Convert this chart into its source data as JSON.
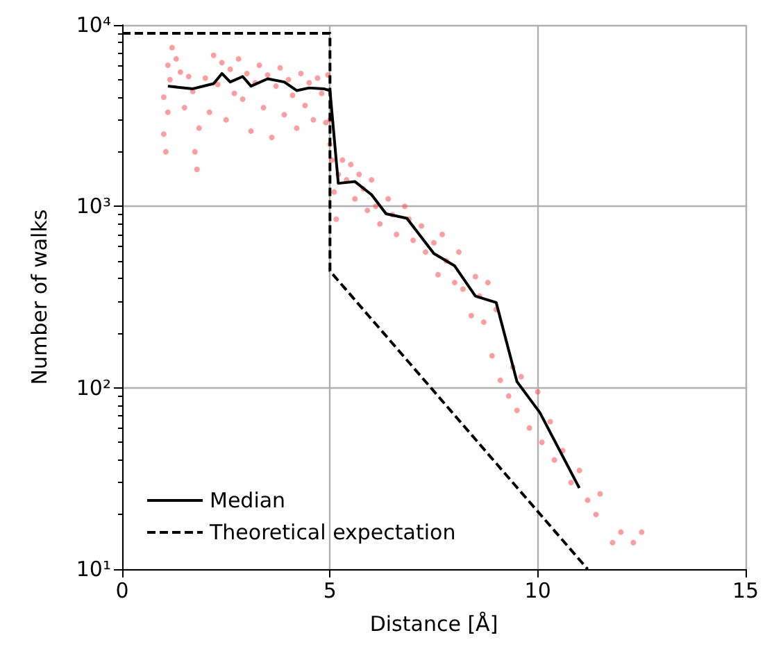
{
  "chart_data": {
    "type": "line",
    "xlabel": "Distance [Å]",
    "ylabel": "Number of walks",
    "xlim": [
      0,
      15
    ],
    "xticks": [
      0,
      5,
      10,
      15
    ],
    "ylim": [
      10,
      10000
    ],
    "yticks": [
      {
        "value": 10,
        "label": "10¹"
      },
      {
        "value": 100,
        "label": "10²"
      },
      {
        "value": 1000,
        "label": "10³"
      },
      {
        "value": 10000,
        "label": "10⁴"
      }
    ],
    "log": "y",
    "grid": true,
    "legend": "bottom left",
    "series": [
      {
        "type": "scatter",
        "color": "#ff4d4d",
        "marker": "circle",
        "x": [
          1.0,
          1.0,
          1.05,
          1.1,
          1.1,
          1.15,
          1.2,
          1.3,
          1.4,
          1.5,
          1.6,
          1.7,
          1.75,
          1.8,
          1.85,
          2.0,
          2.1,
          2.2,
          2.3,
          2.4,
          2.5,
          2.6,
          2.7,
          2.8,
          2.9,
          3.0,
          3.1,
          3.2,
          3.3,
          3.4,
          3.5,
          3.6,
          3.7,
          3.8,
          3.9,
          4.0,
          4.1,
          4.2,
          4.3,
          4.4,
          4.5,
          4.6,
          4.7,
          4.8,
          4.9,
          4.95,
          5.0,
          5.0,
          5.05,
          5.1,
          5.15,
          5.2,
          5.3,
          5.4,
          5.5,
          5.6,
          5.7,
          5.8,
          5.9,
          6.0,
          6.1,
          6.2,
          6.4,
          6.5,
          6.6,
          6.8,
          6.9,
          7.0,
          7.2,
          7.3,
          7.5,
          7.6,
          7.7,
          7.8,
          8.0,
          8.1,
          8.2,
          8.4,
          8.5,
          8.6,
          8.7,
          8.8,
          8.9,
          9.0,
          9.1,
          9.3,
          9.4,
          9.5,
          9.6,
          9.8,
          10.0,
          10.1,
          10.3,
          10.4,
          10.6,
          10.8,
          11.0,
          11.2,
          11.4,
          11.5,
          11.8,
          12.0,
          12.3,
          12.5
        ],
        "values": [
          4000,
          2500,
          2000,
          6000,
          3300,
          5000,
          7500,
          6500,
          5500,
          3500,
          5200,
          4300,
          2000,
          1600,
          2700,
          5100,
          3300,
          6800,
          4700,
          6200,
          3000,
          5700,
          4200,
          6500,
          3900,
          5400,
          2600,
          4800,
          6000,
          3500,
          5300,
          2400,
          4600,
          5800,
          3200,
          5000,
          4100,
          2700,
          5400,
          3600,
          4800,
          3000,
          5100,
          4200,
          2900,
          5300,
          3000,
          2200,
          1800,
          1200,
          850,
          1500,
          1800,
          1400,
          1700,
          1100,
          1500,
          1250,
          950,
          1400,
          1000,
          800,
          1100,
          900,
          700,
          1000,
          850,
          650,
          780,
          560,
          630,
          420,
          700,
          500,
          380,
          560,
          350,
          250,
          410,
          320,
          230,
          380,
          150,
          270,
          110,
          90,
          130,
          75,
          115,
          60,
          95,
          50,
          65,
          40,
          45,
          30,
          35,
          24,
          20,
          26,
          14,
          16,
          14,
          16
        ]
      },
      {
        "name": "Median",
        "color": "#000000",
        "marker": "none",
        "line_style": "solid",
        "x": [
          1.1,
          1.7,
          2.2,
          2.4,
          2.6,
          2.9,
          3.1,
          3.5,
          3.9,
          4.2,
          4.5,
          4.85,
          5.0,
          5.2,
          5.6,
          6.0,
          6.35,
          6.85,
          7.5,
          8.0,
          8.5,
          9.0,
          9.5,
          10.05,
          11.0
        ],
        "values": [
          4600,
          4450,
          4750,
          5400,
          4850,
          5200,
          4600,
          5050,
          4850,
          4350,
          4500,
          4450,
          4350,
          1340,
          1370,
          1160,
          910,
          860,
          550,
          470,
          320,
          295,
          108,
          73,
          28
        ]
      },
      {
        "name": "Theoretical expectation",
        "color": "#000000",
        "marker": "none",
        "line_style": "dashed",
        "x": [
          0,
          5,
          5,
          11.2
        ],
        "values": [
          9000,
          9000,
          440,
          10
        ]
      }
    ]
  }
}
